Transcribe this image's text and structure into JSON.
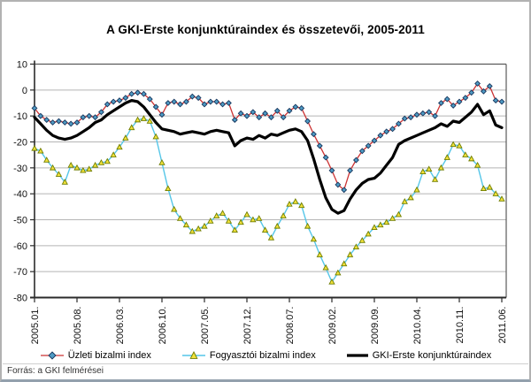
{
  "page": {
    "source": "Forrás: a GKI felmérései"
  },
  "chart_data": {
    "type": "line",
    "title": "A GKI-Erste konjunktúraindex és összetevői, 2005-2011",
    "xlabel": "",
    "ylabel": "",
    "ylim": [
      -80,
      10
    ],
    "grid": true,
    "legend_position": "bottom",
    "frequency": "monthly",
    "x_start": "2005.01",
    "x_end": "2011.06",
    "y_ticks": [
      "10",
      "0",
      "-10",
      "-20",
      "-30",
      "-40",
      "-50",
      "-60",
      "-70",
      "-80"
    ],
    "x_tick_indices": [
      0,
      7,
      14,
      21,
      28,
      35,
      42,
      49,
      56,
      63,
      70,
      77
    ],
    "x_tick_labels": [
      "2005.01.",
      "2005.08.",
      "2006.03.",
      "2006.10.",
      "2007.05.",
      "2007.12.",
      "2008.07.",
      "2009.02.",
      "2009.09.",
      "2010.04.",
      "2010.11.",
      "2011.06."
    ],
    "series": [
      {
        "name": "Üzleti bizalmi index",
        "line_color": "#cc3333",
        "line_width": 1.3,
        "marker": "diamond",
        "marker_fill": "#4f9bc4",
        "marker_stroke": "#17365d",
        "values": [
          -7,
          -10,
          -11.5,
          -12.5,
          -12,
          -12.5,
          -13,
          -12.5,
          -10.5,
          -10,
          -10.5,
          -8.5,
          -5.5,
          -4.5,
          -4,
          -3,
          -1.5,
          -1,
          -1.5,
          -3.5,
          -6.5,
          -9.5,
          -5,
          -4.5,
          -5.5,
          -4.5,
          -2.5,
          -3,
          -5.5,
          -4.5,
          -4.5,
          -5.5,
          -5,
          -11.5,
          -9,
          -10,
          -8.5,
          -10.5,
          -9,
          -10.5,
          -8,
          -10.5,
          -8,
          -6.5,
          -7,
          -12,
          -17,
          -21.5,
          -26,
          -31,
          -36.5,
          -38.5,
          -31,
          -27,
          -23.5,
          -21.5,
          -19.5,
          -17.5,
          -16,
          -15,
          -13,
          -11,
          -10.5,
          -9.5,
          -9,
          -8.5,
          -10,
          -5,
          -3.5,
          -6,
          -4.5,
          -3,
          -1,
          2.5,
          -0.5,
          1.5,
          -4,
          -4.5
        ]
      },
      {
        "name": "Fogyasztói bizalmi index",
        "line_color": "#55c6e8",
        "line_width": 1.4,
        "marker": "triangle",
        "marker_fill": "#f2e23a",
        "marker_stroke": "#6f7d00",
        "values": [
          -22.5,
          -23.5,
          -27,
          -30,
          -32.5,
          -35.5,
          -29,
          -30,
          -31,
          -30.5,
          -29,
          -28,
          -27.5,
          -25,
          -22,
          -18.5,
          -14.5,
          -11.5,
          -11,
          -12,
          -18,
          -28,
          -38,
          -46,
          -49.5,
          -52,
          -54.5,
          -53.5,
          -52.5,
          -50.5,
          -48.5,
          -47.5,
          -50.5,
          -54,
          -51,
          -48,
          -50,
          -49.5,
          -54,
          -57,
          -52.5,
          -48.5,
          -44,
          -43,
          -44.5,
          -52.5,
          -57.5,
          -63.5,
          -68.5,
          -74,
          -70.5,
          -67,
          -63.5,
          -60.5,
          -58,
          -55.5,
          -53,
          -52,
          -51,
          -49.5,
          -48,
          -43,
          -41.5,
          -38.5,
          -31.5,
          -30.5,
          -34.5,
          -30,
          -26,
          -21,
          -21.5,
          -25,
          -26.5,
          -29,
          -38,
          -37.5,
          -40,
          -42
        ]
      },
      {
        "name": "GKI-Erste konjunktúraindex",
        "line_color": "#000000",
        "line_width": 3.2,
        "marker": "none",
        "values": [
          -10.5,
          -13,
          -15.5,
          -17.5,
          -18.5,
          -19,
          -18.5,
          -17.5,
          -16,
          -14.5,
          -12.5,
          -11.5,
          -9.5,
          -8,
          -6.5,
          -5,
          -4,
          -4.5,
          -6.5,
          -9.5,
          -12.5,
          -15,
          -15.5,
          -16,
          -17,
          -16.5,
          -16,
          -16.5,
          -17,
          -16,
          -15.5,
          -16,
          -16.5,
          -21.5,
          -19.5,
          -18.5,
          -19,
          -17.5,
          -18.5,
          -17,
          -17.5,
          -16.5,
          -15.5,
          -15,
          -16,
          -19.5,
          -26.5,
          -34.5,
          -41.5,
          -46,
          -47.5,
          -46.5,
          -42,
          -38.5,
          -36,
          -34.5,
          -34,
          -32,
          -29,
          -26,
          -21,
          -19.5,
          -18.5,
          -17.5,
          -16.5,
          -15.5,
          -14.5,
          -13,
          -14,
          -12,
          -12.5,
          -10.5,
          -8.5,
          -5.5,
          -9.5,
          -8,
          -13.5,
          -14.5
        ]
      }
    ]
  }
}
